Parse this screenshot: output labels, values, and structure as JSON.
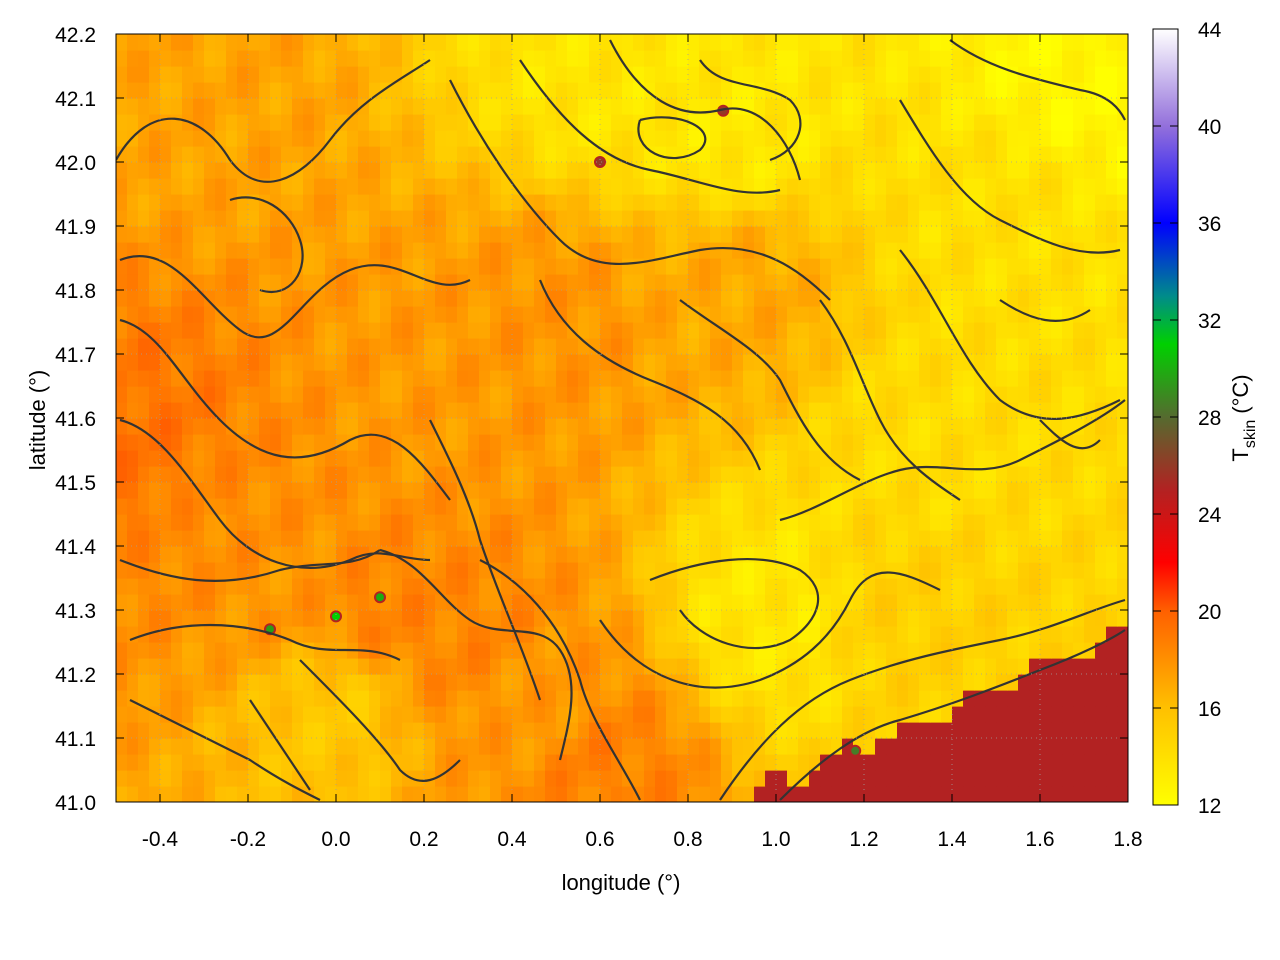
{
  "chart_data": {
    "type": "heatmap",
    "title": "",
    "xlabel": "longitude (°)",
    "ylabel": "latitude (°)",
    "colorbar_label": {
      "base": "T",
      "subscript": "skin",
      "unit": "(°C)"
    },
    "xlim": [
      -0.5,
      1.8
    ],
    "ylim": [
      41.0,
      42.2
    ],
    "x_ticks": [
      -0.4,
      -0.2,
      0.0,
      0.2,
      0.4,
      0.6,
      0.8,
      1.0,
      1.2,
      1.4,
      1.6,
      1.8
    ],
    "x_tick_labels": [
      "-0.4",
      "-0.2",
      "0.0",
      "0.2",
      "0.4",
      "0.6",
      "0.8",
      "1.0",
      "1.2",
      "1.4",
      "1.6",
      "1.8"
    ],
    "y_ticks": [
      41.0,
      41.1,
      41.2,
      41.3,
      41.4,
      41.5,
      41.6,
      41.7,
      41.8,
      41.9,
      42.0,
      42.1,
      42.2
    ],
    "y_tick_labels": [
      "41.0",
      "41.1",
      "41.2",
      "41.3",
      "41.4",
      "41.5",
      "41.6",
      "41.7",
      "41.8",
      "41.9",
      "42.0",
      "42.1",
      "42.2"
    ],
    "colorbar_range": [
      12,
      44
    ],
    "colorbar_ticks": [
      12,
      16,
      20,
      24,
      28,
      32,
      36,
      40,
      44
    ],
    "colorbar_tick_labels": [
      "12",
      "16",
      "20",
      "24",
      "28",
      "32",
      "36",
      "40",
      "44"
    ],
    "colormap_stops": [
      {
        "value": 12,
        "color": "#ffff00"
      },
      {
        "value": 16,
        "color": "#ffc000"
      },
      {
        "value": 20,
        "color": "#ff6000"
      },
      {
        "value": 22,
        "color": "#ff0000"
      },
      {
        "value": 25,
        "color": "#b22222"
      },
      {
        "value": 28,
        "color": "#556b2f"
      },
      {
        "value": 31,
        "color": "#00d000"
      },
      {
        "value": 33,
        "color": "#008b8b"
      },
      {
        "value": 36,
        "color": "#0000ff"
      },
      {
        "value": 40,
        "color": "#9370db"
      },
      {
        "value": 44,
        "color": "#ffffff"
      }
    ],
    "grid": true,
    "contours": true,
    "contour_color": "#333333",
    "field_description_note": "",
    "regions": [
      {
        "lon": -0.45,
        "lat": 41.55,
        "t": 19.2
      },
      {
        "lon": -0.3,
        "lat": 41.45,
        "t": 18.2
      },
      {
        "lon": -0.1,
        "lat": 41.35,
        "t": 17.8
      },
      {
        "lon": 0.1,
        "lat": 41.3,
        "t": 18.5
      },
      {
        "lon": 0.3,
        "lat": 41.25,
        "t": 18.4
      },
      {
        "lon": 0.45,
        "lat": 41.15,
        "t": 17.6
      },
      {
        "lon": 0.6,
        "lat": 41.05,
        "t": 18.6
      },
      {
        "lon": -0.3,
        "lat": 42.1,
        "t": 17.2
      },
      {
        "lon": 0.2,
        "lat": 41.65,
        "t": 17.6
      },
      {
        "lon": 0.5,
        "lat": 41.75,
        "t": 17.8
      },
      {
        "lon": 0.9,
        "lat": 41.8,
        "t": 17.0
      },
      {
        "lon": 0.9,
        "lat": 42.05,
        "t": 13.4
      },
      {
        "lon": 1.7,
        "lat": 42.15,
        "t": 12.5
      },
      {
        "lon": 1.5,
        "lat": 41.9,
        "t": 14.0
      },
      {
        "lon": 1.35,
        "lat": 41.55,
        "t": 14.2
      },
      {
        "lon": 1.0,
        "lat": 41.3,
        "t": 13.5
      },
      {
        "lon": 0.6,
        "lat": 42.15,
        "t": 13.6
      },
      {
        "lon": 0.0,
        "lat": 41.15,
        "t": 15.5
      },
      {
        "lon": 1.3,
        "lat": 41.3,
        "t": 15.0
      }
    ],
    "sea_region": {
      "t": 25.0
    },
    "hot_spots": [
      {
        "lon": 0.0,
        "lat": 41.29,
        "t": 31.0
      },
      {
        "lon": 0.1,
        "lat": 41.32,
        "t": 30.0
      },
      {
        "lon": -0.15,
        "lat": 41.27,
        "t": 29.5
      },
      {
        "lon": 0.6,
        "lat": 42.0,
        "t": 26.0
      },
      {
        "lon": 0.88,
        "lat": 42.08,
        "t": 26.0
      },
      {
        "lon": 1.18,
        "lat": 41.08,
        "t": 28.5
      }
    ]
  }
}
